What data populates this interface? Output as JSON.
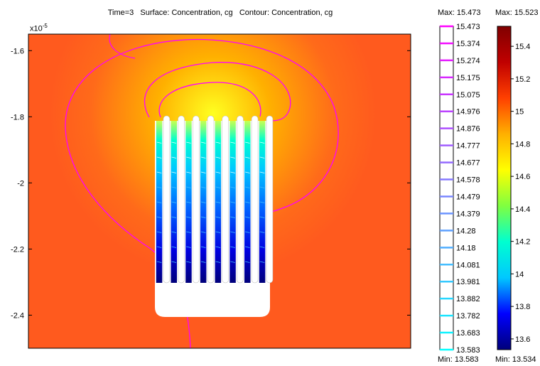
{
  "title": "Time=3   Surface: Concentration, cg   Contour: Concentration, cg",
  "axis_exponent": {
    "base": "x10",
    "power": "-5"
  },
  "contour_legend": {
    "max_label": "Max: 15.473",
    "min_label": "Min: 13.583"
  },
  "surface_legend": {
    "max_label": "Max: 15.523",
    "min_label": "Min: 13.534"
  },
  "chart_data": {
    "type": "heatmap",
    "title": "Time=3   Surface: Concentration, cg   Contour: Concentration, cg",
    "y_ticks": [
      "-1.6",
      "-1.8",
      "-2",
      "-2.2",
      "-2.4"
    ],
    "y_tick_values": [
      -1.6,
      -1.8,
      -2.0,
      -2.2,
      -2.4
    ],
    "y_scale": "x10^-5",
    "ylim": [
      -2.5,
      -1.55
    ],
    "surface_variable": "Concentration, cg",
    "contour_variable": "Concentration, cg",
    "surface_range": [
      13.534,
      15.523
    ],
    "contour_range": [
      13.583,
      15.473
    ],
    "contour_levels": [
      "15.473",
      "15.374",
      "15.274",
      "15.175",
      "15.075",
      "14.976",
      "14.876",
      "14.777",
      "14.677",
      "14.578",
      "14.479",
      "14.379",
      "14.28",
      "14.18",
      "14.081",
      "13.981",
      "13.882",
      "13.782",
      "13.683",
      "13.583"
    ],
    "colorbar_ticks": [
      "15.4",
      "15.2",
      "15",
      "14.8",
      "14.6",
      "14.4",
      "14.2",
      "14",
      "13.8",
      "13.6"
    ],
    "colorbar_tick_values": [
      15.4,
      15.2,
      15.0,
      14.8,
      14.6,
      14.4,
      14.2,
      14.0,
      13.8,
      13.6
    ],
    "colormap": [
      "#00007a",
      "#0000ff",
      "#00c8ff",
      "#00ffd0",
      "#7fff40",
      "#ffff00",
      "#ffb000",
      "#ff4000",
      "#c00000",
      "#800000"
    ],
    "contour_colors": {
      "high": "#ff00ff",
      "low": "#00ffff"
    },
    "background_color": "#ff5a1e",
    "hotspot_color": "#ffff20",
    "electrode_fingers": 8
  }
}
